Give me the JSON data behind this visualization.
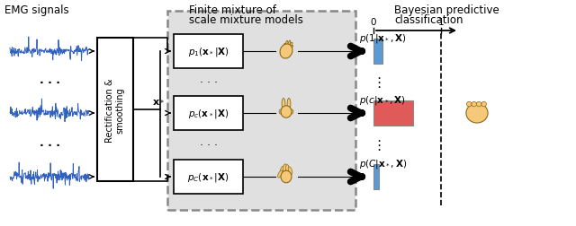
{
  "bg_color": "#ffffff",
  "emg_label": "EMG signals",
  "mixture_title_line1": "Finite mixture of",
  "mixture_title_line2": "scale mixture models",
  "bayes_title_line1": "Bayesian predictive",
  "bayes_title_line2": "classification",
  "x_star_label": "$\\mathbf{x}_*$",
  "box_labels": [
    "$p_1(\\mathbf{x}_*|\\mathbf{X})$",
    "$p_c(\\mathbf{x}_*|\\mathbf{X})$",
    "$p_C(\\mathbf{x}_*|\\mathbf{X})$"
  ],
  "prob_labels": [
    "$p(1|\\mathbf{x}_*, \\mathbf{X})$",
    "$p(c|\\mathbf{x}_*, \\mathbf{X})$",
    "$p(C|\\mathbf{x}_*, \\mathbf{X})$"
  ],
  "bar_values": [
    0.13,
    0.58,
    0.08
  ],
  "bar_colors": [
    "#5b9bd5",
    "#e05a5a",
    "#5b9bd5"
  ],
  "emg_color": "#3060c0",
  "gray_box_color": "#e0e0e0",
  "dashed_box_color": "#888888",
  "rect_smooth_label": "Rectification &\nsmoothing"
}
